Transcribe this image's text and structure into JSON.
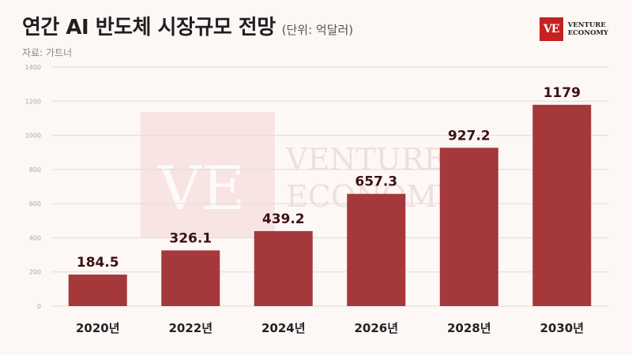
{
  "header": {
    "title": "연간 AI 반도체 시장규모 전망",
    "unit": "(단위: 억달러)",
    "source": "자료: 가트너"
  },
  "logo": {
    "mark": "VE",
    "line1": "VENTURE",
    "line2": "ECONOMY"
  },
  "watermark": {
    "line1": "VENTURE",
    "line2": "ECONOMY"
  },
  "colors": {
    "bar": "#a4383b",
    "background": "#fdf7f6",
    "grid": "#dddddd",
    "brand": "#c5221f"
  },
  "chart_data": {
    "type": "bar",
    "categories": [
      "2020년",
      "2022년",
      "2024년",
      "2026년",
      "2028년",
      "2030년"
    ],
    "values": [
      184.5,
      326.1,
      439.2,
      657.3,
      927.2,
      1179
    ],
    "value_labels": [
      "184.5",
      "326.1",
      "439.2",
      "657.3",
      "927.2",
      "1179"
    ],
    "yticks": [
      "0",
      "200",
      "400",
      "600",
      "800",
      "1000",
      "1200",
      "1400"
    ],
    "ylim": [
      0,
      1400
    ],
    "grid": true,
    "title": "연간 AI 반도체 시장규모 전망",
    "ylabel": "",
    "xlabel": ""
  }
}
